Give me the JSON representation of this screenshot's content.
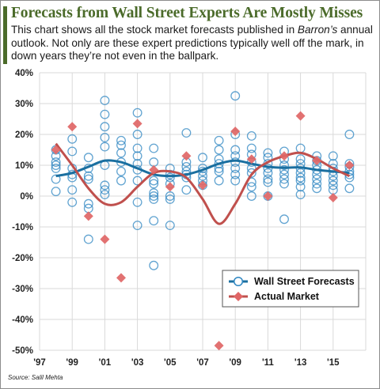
{
  "title": "Forecasts from Wall Street Experts Are Mostly Misses",
  "subtitle": {
    "part1": "This chart shows all the stock market forecasts published in ",
    "italic": "Barron’s",
    "part2": " annual outlook. Not only are these expert predictions typically well off the mark, in down years they’re not even in the ballpark."
  },
  "source": "Source: Salil Mehta",
  "colors": {
    "title": "#4b6b2a",
    "forecast": "#2e86c1",
    "forecast_line": "#1a6fa0",
    "actual": "#e06666",
    "actual_line": "#c0504d",
    "grid": "#d9d9d9"
  },
  "chart_data": {
    "type": "scatter",
    "x_tick_labels": [
      "'97",
      "'99",
      "'01",
      "'03",
      "'05",
      "'07",
      "'09",
      "'11",
      "'13",
      "'15"
    ],
    "x_ticks": [
      1997,
      1999,
      2001,
      2003,
      2005,
      2007,
      2009,
      2011,
      2013,
      2015
    ],
    "xlim": [
      1997,
      2017
    ],
    "ylim": [
      -50,
      40
    ],
    "y_ticks": [
      -50,
      -40,
      -30,
      -20,
      -10,
      0,
      10,
      20,
      30,
      40
    ],
    "y_tick_labels": [
      "-50%",
      "-40%",
      "-30%",
      "-20%",
      "-10%",
      "0%",
      "10%",
      "20%",
      "30%",
      "40%"
    ],
    "grid": true,
    "legend_position": "bottom-right",
    "series": [
      {
        "name": "Wall Street Forecasts",
        "marker": "open-circle",
        "points": [
          [
            1998,
            15
          ],
          [
            1998,
            13
          ],
          [
            1998,
            11
          ],
          [
            1998,
            10
          ],
          [
            1998,
            9
          ],
          [
            1998,
            5.5
          ],
          [
            1998,
            1.5
          ],
          [
            1999,
            18.5
          ],
          [
            1999,
            14.5
          ],
          [
            1999,
            9
          ],
          [
            1999,
            7
          ],
          [
            1999,
            6
          ],
          [
            1999,
            2
          ],
          [
            1999,
            -2
          ],
          [
            2000,
            12.5
          ],
          [
            2000,
            9
          ],
          [
            2000,
            6.5
          ],
          [
            2000,
            5.5
          ],
          [
            2000,
            -2.5
          ],
          [
            2000,
            -4
          ],
          [
            2000,
            -14
          ],
          [
            2001,
            31
          ],
          [
            2001,
            26.5
          ],
          [
            2001,
            22.5
          ],
          [
            2001,
            19
          ],
          [
            2001,
            16
          ],
          [
            2001,
            10
          ],
          [
            2001,
            3.5
          ],
          [
            2001,
            2
          ],
          [
            2001,
            0.5
          ],
          [
            2002,
            18
          ],
          [
            2002,
            16.5
          ],
          [
            2002,
            14
          ],
          [
            2002,
            11
          ],
          [
            2002,
            8
          ],
          [
            2002,
            5
          ],
          [
            2003,
            27
          ],
          [
            2003,
            20
          ],
          [
            2003,
            15.5
          ],
          [
            2003,
            13
          ],
          [
            2003,
            10.5
          ],
          [
            2003,
            8.5
          ],
          [
            2003,
            5
          ],
          [
            2003,
            -2
          ],
          [
            2003,
            -9.5
          ],
          [
            2004,
            15.5
          ],
          [
            2004,
            11
          ],
          [
            2004,
            5
          ],
          [
            2004,
            4
          ],
          [
            2004,
            1
          ],
          [
            2004,
            0
          ],
          [
            2004,
            -1
          ],
          [
            2004,
            -8
          ],
          [
            2004,
            -22.5
          ],
          [
            2005,
            9
          ],
          [
            2005,
            7
          ],
          [
            2005,
            6
          ],
          [
            2005,
            4
          ],
          [
            2005,
            0
          ],
          [
            2005,
            -1
          ],
          [
            2005,
            -9.5
          ],
          [
            2006,
            20.5
          ],
          [
            2006,
            11
          ],
          [
            2006,
            9.5
          ],
          [
            2006,
            8
          ],
          [
            2006,
            7
          ],
          [
            2006,
            6
          ],
          [
            2006,
            2
          ],
          [
            2007,
            12.5
          ],
          [
            2007,
            9
          ],
          [
            2007,
            8
          ],
          [
            2007,
            6.5
          ],
          [
            2007,
            5
          ],
          [
            2007,
            3.5
          ],
          [
            2008,
            18
          ],
          [
            2008,
            15
          ],
          [
            2008,
            12
          ],
          [
            2008,
            10.5
          ],
          [
            2008,
            9
          ],
          [
            2008,
            8
          ],
          [
            2008,
            5
          ],
          [
            2009,
            32.5
          ],
          [
            2009,
            20
          ],
          [
            2009,
            15
          ],
          [
            2009,
            13
          ],
          [
            2009,
            11
          ],
          [
            2009,
            9
          ],
          [
            2009,
            7
          ],
          [
            2009,
            5
          ],
          [
            2010,
            19.5
          ],
          [
            2010,
            15.5
          ],
          [
            2010,
            13.5
          ],
          [
            2010,
            11
          ],
          [
            2010,
            9
          ],
          [
            2010,
            7.5
          ],
          [
            2010,
            4.5
          ],
          [
            2010,
            3
          ],
          [
            2010,
            0
          ],
          [
            2011,
            14
          ],
          [
            2011,
            12.5
          ],
          [
            2011,
            10.5
          ],
          [
            2011,
            9
          ],
          [
            2011,
            7.5
          ],
          [
            2011,
            5.5
          ],
          [
            2011,
            4.5
          ],
          [
            2011,
            0
          ],
          [
            2012,
            14.5
          ],
          [
            2012,
            12
          ],
          [
            2012,
            10
          ],
          [
            2012,
            8.5
          ],
          [
            2012,
            7
          ],
          [
            2012,
            5.5
          ],
          [
            2012,
            4
          ],
          [
            2012,
            -7.5
          ],
          [
            2013,
            15.5
          ],
          [
            2013,
            12
          ],
          [
            2013,
            10.5
          ],
          [
            2013,
            9
          ],
          [
            2013,
            7.5
          ],
          [
            2013,
            6
          ],
          [
            2013,
            5
          ],
          [
            2013,
            3
          ],
          [
            2013,
            0.5
          ],
          [
            2014,
            13
          ],
          [
            2014,
            11.5
          ],
          [
            2014,
            10
          ],
          [
            2014,
            8.5
          ],
          [
            2014,
            7
          ],
          [
            2014,
            5.5
          ],
          [
            2014,
            4
          ],
          [
            2014,
            2.5
          ],
          [
            2015,
            13
          ],
          [
            2015,
            10.5
          ],
          [
            2015,
            9
          ],
          [
            2015,
            8
          ],
          [
            2015,
            6.5
          ],
          [
            2015,
            5
          ],
          [
            2015,
            3.5
          ],
          [
            2015,
            2
          ],
          [
            2016,
            20
          ],
          [
            2016,
            10.5
          ],
          [
            2016,
            9.5
          ],
          [
            2016,
            8
          ],
          [
            2016,
            7
          ],
          [
            2016,
            6
          ],
          [
            2016,
            2.5
          ]
        ],
        "trend": [
          [
            1998,
            6.5
          ],
          [
            1999,
            7.5
          ],
          [
            2000,
            9.5
          ],
          [
            2001,
            11.5
          ],
          [
            2002,
            11
          ],
          [
            2003,
            9
          ],
          [
            2004,
            7
          ],
          [
            2005,
            6.5
          ],
          [
            2006,
            7
          ],
          [
            2007,
            8.5
          ],
          [
            2008,
            10.5
          ],
          [
            2009,
            11.5
          ],
          [
            2010,
            10.5
          ],
          [
            2011,
            9.5
          ],
          [
            2012,
            9.2
          ],
          [
            2013,
            9.3
          ],
          [
            2014,
            8.5
          ],
          [
            2015,
            8
          ],
          [
            2016,
            7.5
          ]
        ]
      },
      {
        "name": "Actual Market",
        "marker": "diamond",
        "points": [
          [
            1998,
            15
          ],
          [
            1999,
            22.5
          ],
          [
            2000,
            -6.5
          ],
          [
            2001,
            -14
          ],
          [
            2002,
            -26.5
          ],
          [
            2003,
            23.5
          ],
          [
            2004,
            8.5
          ],
          [
            2005,
            3
          ],
          [
            2006,
            13
          ],
          [
            2007,
            3.5
          ],
          [
            2008,
            -48.5
          ],
          [
            2009,
            21
          ],
          [
            2010,
            12
          ],
          [
            2011,
            0
          ],
          [
            2012,
            13
          ],
          [
            2013,
            26
          ],
          [
            2014,
            11.5
          ],
          [
            2015,
            -0.5
          ],
          [
            2016,
            10
          ]
        ],
        "trend": [
          [
            1998,
            17
          ],
          [
            1999,
            10
          ],
          [
            2000,
            2.5
          ],
          [
            2001,
            -2.5
          ],
          [
            2002,
            -2
          ],
          [
            2003,
            3
          ],
          [
            2004,
            7.5
          ],
          [
            2005,
            8
          ],
          [
            2006,
            6
          ],
          [
            2007,
            -1
          ],
          [
            2008,
            -9
          ],
          [
            2009,
            -2.5
          ],
          [
            2010,
            7
          ],
          [
            2011,
            11
          ],
          [
            2012,
            13
          ],
          [
            2013,
            14
          ],
          [
            2014,
            12
          ],
          [
            2015,
            9
          ],
          [
            2016,
            6.5
          ]
        ]
      }
    ]
  }
}
